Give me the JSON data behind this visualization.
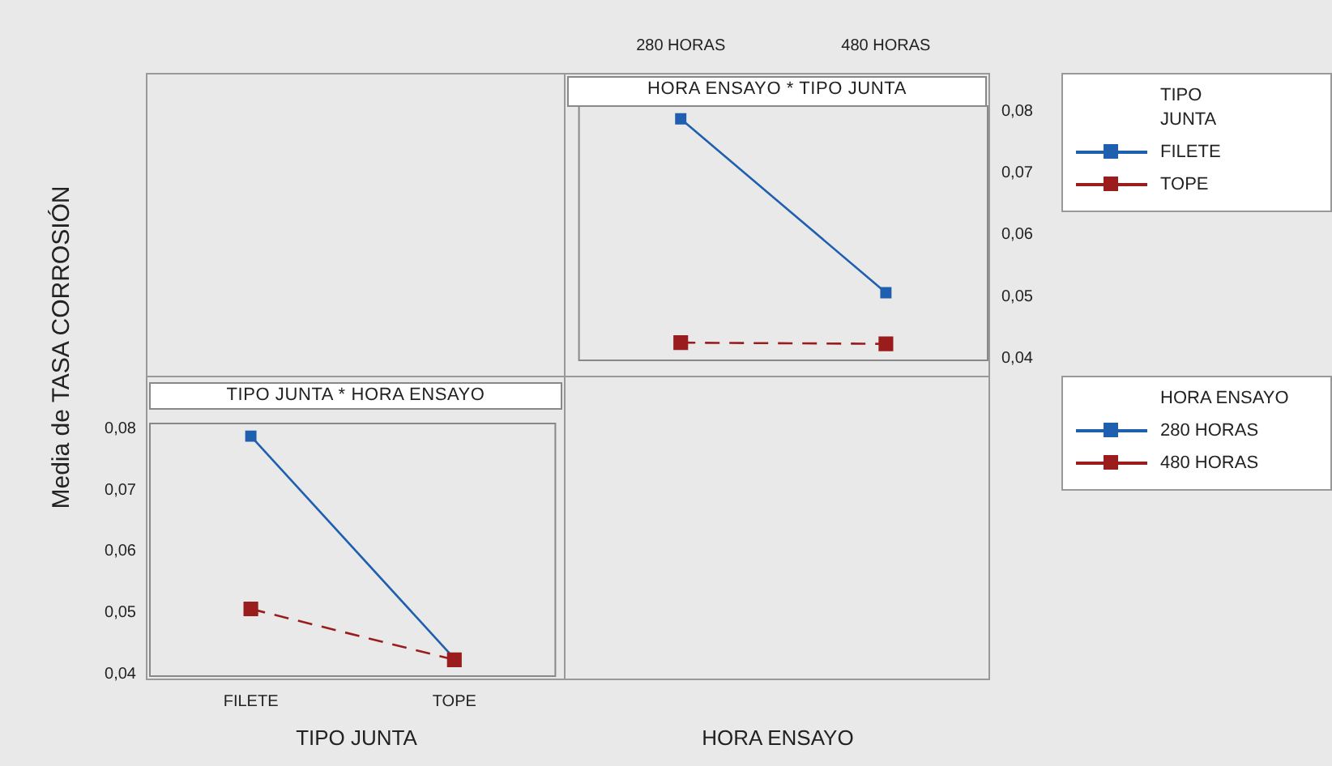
{
  "chart_data": [
    {
      "type": "line",
      "title": "TIPO JUNTA * HORA ENSAYO",
      "xlabel": "TIPO JUNTA",
      "ylabel": "Media de TASA CORROSIÓN",
      "legend_title": "HORA ENSAYO",
      "legend": "right",
      "marker": "square",
      "categories": [
        "FILETE",
        "TOPE"
      ],
      "series": [
        {
          "name": "280 HORAS",
          "color": "#1f5faf",
          "values": [
            0.0788,
            0.0425
          ],
          "line_style": "solid"
        },
        {
          "name": "480 HORAS",
          "color": "#9b1c1c",
          "values": [
            0.0506,
            0.0423
          ],
          "line_style": "dashed"
        }
      ],
      "ylim": [
        0.0395,
        0.081
      ],
      "yticks": [
        {
          "value": 0.04,
          "label": "0,04"
        },
        {
          "value": 0.05,
          "label": "0,05"
        },
        {
          "value": 0.06,
          "label": "0,06"
        },
        {
          "value": 0.07,
          "label": "0,07"
        },
        {
          "value": 0.08,
          "label": "0,08"
        }
      ]
    },
    {
      "type": "line",
      "title": "HORA ENSAYO * TIPO JUNTA",
      "xlabel": "HORA ENSAYO",
      "legend_title": "TIPO JUNTA",
      "legend": "right",
      "marker": "square",
      "categories": [
        "280 HORAS",
        "480 HORAS"
      ],
      "series": [
        {
          "name": "FILETE",
          "color": "#1f5faf",
          "values": [
            0.0788,
            0.0506
          ],
          "line_style": "solid"
        },
        {
          "name": "TOPE",
          "color": "#9b1c1c",
          "values": [
            0.0425,
            0.0423
          ],
          "line_style": "dashed"
        }
      ],
      "ylim": [
        0.0395,
        0.081
      ],
      "yticks": [
        {
          "value": 0.04,
          "label": "0,04"
        },
        {
          "value": 0.05,
          "label": "0,05"
        },
        {
          "value": 0.06,
          "label": "0,06"
        },
        {
          "value": 0.07,
          "label": "0,07"
        },
        {
          "value": 0.08,
          "label": "0,08"
        }
      ]
    }
  ]
}
